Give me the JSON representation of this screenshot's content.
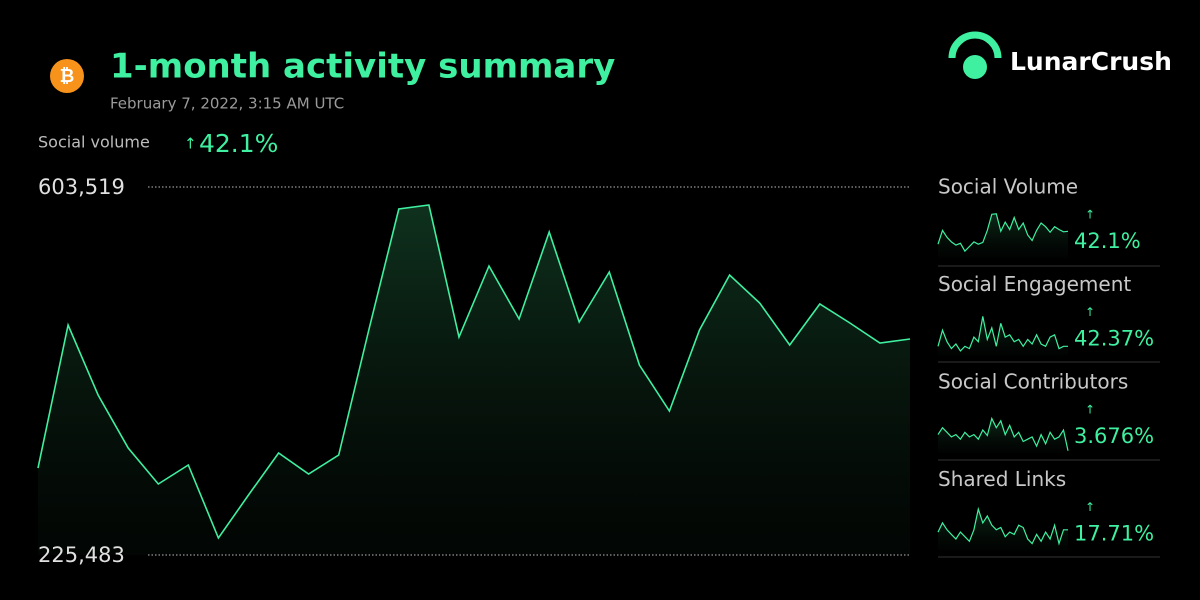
{
  "header": {
    "title": "1-month activity summary",
    "subtitle": "February 7, 2022, 3:15 AM UTC",
    "brand": "LunarCrush"
  },
  "summary": {
    "label": "Social volume",
    "change": "42.1%"
  },
  "chart_data": [
    {
      "type": "area",
      "color": "#3ef0a0",
      "ylim": [
        225483,
        603519
      ],
      "yticks": [
        {
          "value": 225483,
          "label": "225,483"
        },
        {
          "value": 603519,
          "label": "603,519"
        }
      ],
      "values": [
        314800,
        461800,
        389800,
        335400,
        298400,
        317900,
        242900,
        287100,
        330300,
        308700,
        328200,
        456600,
        580900,
        585000,
        449400,
        522400,
        467900,
        557300,
        464800,
        516200,
        420700,
        373400,
        456600,
        513100,
        484400,
        441200,
        483300,
        463800,
        443300,
        447400
      ]
    },
    {
      "type": "sparkline",
      "title": "Social Volume",
      "change": "42.1%",
      "color": "#3ef0a0",
      "ylim": [
        0,
        100
      ],
      "values": [
        30,
        60,
        45,
        35,
        28,
        32,
        15,
        25,
        35,
        30,
        34,
        60,
        95,
        96,
        58,
        78,
        62,
        88,
        62,
        76,
        50,
        38,
        60,
        76,
        68,
        56,
        68,
        62,
        57,
        58
      ]
    },
    {
      "type": "sparkline",
      "title": "Social Engagement",
      "change": "42.37%",
      "color": "#3ef0a0",
      "ylim": [
        0,
        100
      ],
      "values": [
        20,
        55,
        30,
        15,
        25,
        10,
        20,
        15,
        40,
        30,
        85,
        35,
        60,
        20,
        70,
        40,
        45,
        30,
        35,
        20,
        35,
        25,
        45,
        25,
        20,
        40,
        45,
        15,
        20,
        20
      ]
    },
    {
      "type": "sparkline",
      "title": "Social Contributors",
      "change": "3.676%",
      "color": "#3ef0a0",
      "ylim": [
        0,
        100
      ],
      "values": [
        40,
        55,
        45,
        35,
        40,
        30,
        45,
        35,
        40,
        30,
        50,
        38,
        75,
        55,
        70,
        40,
        60,
        35,
        45,
        25,
        30,
        35,
        15,
        40,
        20,
        45,
        30,
        35,
        50,
        5
      ]
    },
    {
      "type": "sparkline",
      "title": "Shared Links",
      "change": "17.71%",
      "color": "#3ef0a0",
      "ylim": [
        0,
        100
      ],
      "values": [
        40,
        60,
        45,
        35,
        25,
        40,
        30,
        20,
        45,
        90,
        60,
        75,
        55,
        45,
        50,
        30,
        40,
        35,
        55,
        50,
        25,
        15,
        35,
        20,
        40,
        25,
        55,
        15,
        45,
        45
      ]
    }
  ]
}
